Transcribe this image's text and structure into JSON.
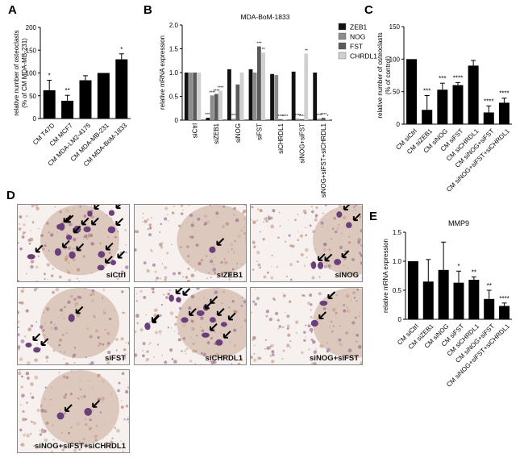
{
  "panels": {
    "A": "A",
    "B": "B",
    "C": "C",
    "D": "D",
    "E": "E"
  },
  "chart_data": [
    {
      "id": "A",
      "type": "bar",
      "ylabel": "relative number of osteoclasts\n(% of CM MDA-MB-231)",
      "ylim": [
        0,
        200
      ],
      "yticks": [
        0,
        50,
        100,
        150,
        200
      ],
      "categories": [
        "CM T47D",
        "CM MCF7",
        "CM MDA-LM2-4175",
        "CM MDA-MB-231",
        "CM MDA-BoM-1833"
      ],
      "values": [
        62,
        39,
        84,
        100,
        130
      ],
      "errors": [
        22,
        12,
        10,
        0,
        12
      ],
      "significance": [
        "*",
        "**",
        "",
        "",
        "*"
      ]
    },
    {
      "id": "B",
      "type": "bar",
      "title": "MDA-BoM-1833",
      "ylabel": "relative mRNA expression",
      "ylim": [
        0,
        2.0
      ],
      "yticks": [
        0,
        0.5,
        1.0,
        1.5,
        2.0
      ],
      "categories": [
        "siCtrl",
        "siZEB1",
        "siNOG",
        "siFST",
        "siCHRDL1",
        "siNOG+siFST",
        "siNOG+siFST+siCHRDL1"
      ],
      "series": [
        {
          "name": "ZEB1",
          "color": "#111111",
          "values": [
            1.0,
            0.05,
            1.07,
            1.07,
            0.97,
            1.02,
            1.0
          ],
          "sig": [
            "",
            "****",
            "",
            "",
            "",
            "",
            ""
          ]
        },
        {
          "name": "NOG",
          "color": "#8c8c8c",
          "values": [
            1.0,
            0.52,
            0.03,
            1.0,
            0.95,
            0.03,
            0.03
          ],
          "sig": [
            "",
            "****",
            "****",
            "",
            "",
            "****",
            "****"
          ]
        },
        {
          "name": "FST",
          "color": "#5a5a5a",
          "values": [
            1.0,
            0.55,
            0.75,
            1.55,
            0.02,
            0.02,
            0.05
          ],
          "sig": [
            "",
            "****",
            "",
            "***",
            "****",
            "****",
            "****"
          ]
        },
        {
          "name": "CHRDL1",
          "color": "#d0d0d0",
          "values": [
            1.0,
            0.62,
            1.0,
            1.42,
            0.02,
            1.4,
            0.02
          ],
          "sig": [
            "",
            "****",
            "",
            "**",
            "****",
            "**",
            "*"
          ]
        }
      ]
    },
    {
      "id": "C",
      "type": "bar",
      "ylabel": "relative number of osteoclasts\n(% of control)",
      "ylim": [
        0,
        150
      ],
      "yticks": [
        0,
        50,
        100,
        150
      ],
      "categories": [
        "CM siCtrl",
        "CM siZEB1",
        "CM siNOG",
        "CM siFST",
        "CM siCHRDL1",
        "CM siNOG+siFST",
        "CM siNOG+siFST+siCHRDL1"
      ],
      "values": [
        100,
        22,
        53,
        60,
        90,
        18,
        33
      ],
      "errors": [
        0,
        22,
        10,
        4,
        8,
        10,
        7
      ],
      "significance": [
        "",
        "***",
        "***",
        "****",
        "",
        "****",
        "****"
      ]
    },
    {
      "id": "E",
      "type": "bar",
      "title": "MMP9",
      "ylabel": "relative mRNA expression",
      "ylim": [
        0,
        1.5
      ],
      "yticks": [
        0,
        0.5,
        1.0,
        1.5
      ],
      "categories": [
        "CM siCtrl",
        "CM siZEB1",
        "CM siNOG",
        "CM siFST",
        "CM siCHRDL1",
        "CM siNOG+siFST",
        "CM siNOG+siFST+siCHRDL1"
      ],
      "values": [
        1.0,
        0.65,
        0.85,
        0.63,
        0.68,
        0.35,
        0.23
      ],
      "errors": [
        0,
        0.38,
        0.48,
        0.2,
        0.05,
        0.15,
        0.05
      ],
      "significance": [
        "",
        "",
        "",
        "*",
        "**",
        "**",
        "****"
      ]
    }
  ],
  "micrographs": [
    {
      "label": "siCtrl",
      "arrows": 14
    },
    {
      "label": "siZEB1",
      "arrows": 1
    },
    {
      "label": "siNOG",
      "arrows": 5
    },
    {
      "label": "siFST",
      "arrows": 3
    },
    {
      "label": "siCHRDL1",
      "arrows": 11
    },
    {
      "label": "siNOG+siFST",
      "arrows": 2
    },
    {
      "label": "siNOG+siFST+siCHRDL1",
      "arrows": 2
    }
  ]
}
